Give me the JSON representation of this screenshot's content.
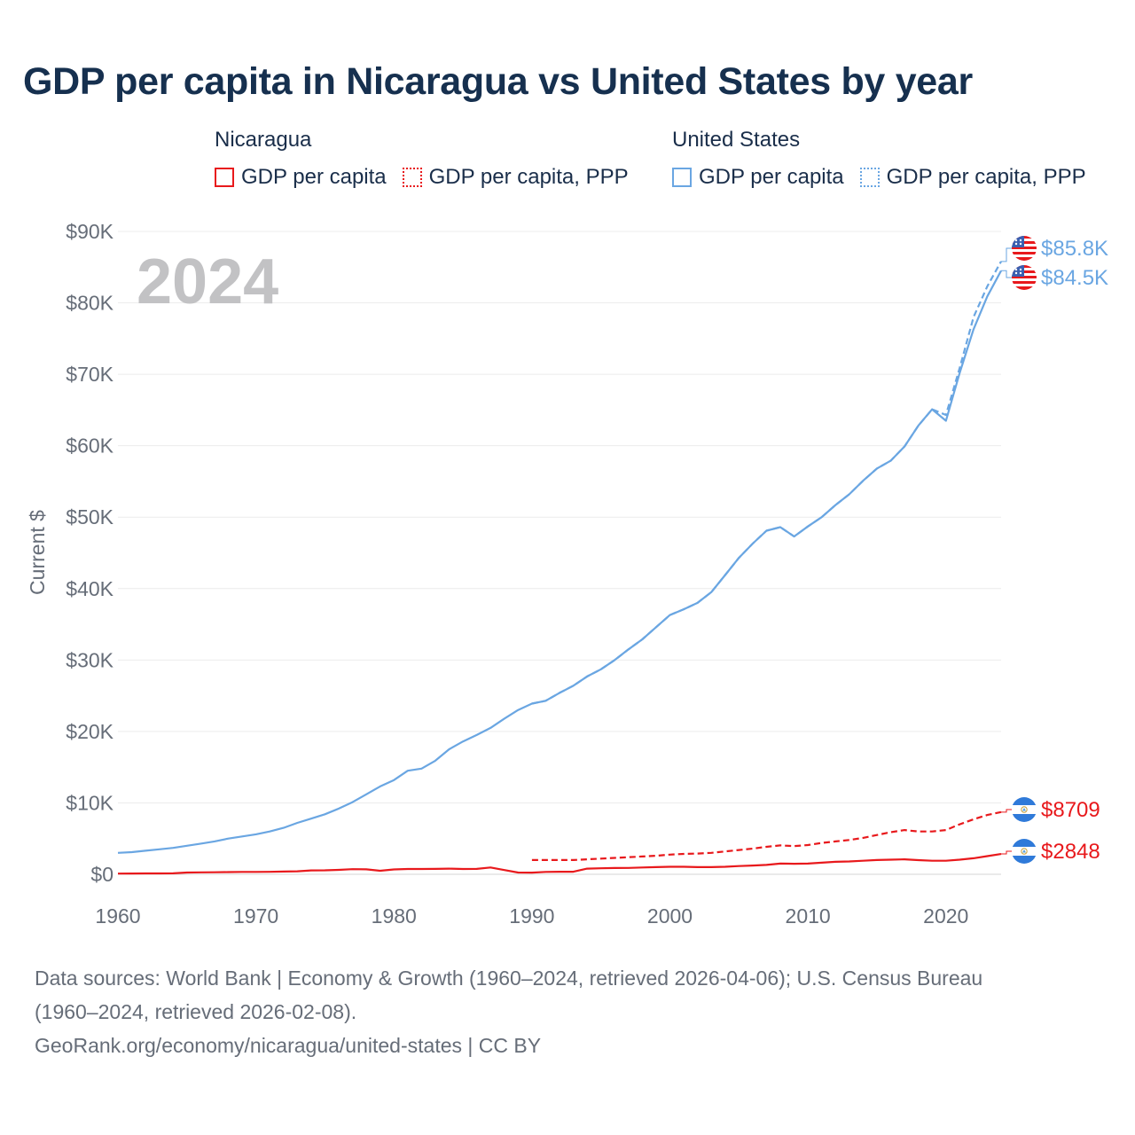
{
  "title": "GDP per capita in Nicaragua vs United States by year",
  "legend": {
    "groups": [
      {
        "name": "Nicaragua",
        "items": [
          {
            "label": "GDP per capita",
            "style": "solid",
            "color": "#e8191c"
          },
          {
            "label": "GDP per capita, PPP",
            "style": "dotted",
            "color": "#e8191c"
          }
        ]
      },
      {
        "name": "United States",
        "items": [
          {
            "label": "GDP per capita",
            "style": "solid",
            "color": "#6aa6e2"
          },
          {
            "label": "GDP per capita, PPP",
            "style": "dotted",
            "color": "#6aa6e2"
          }
        ]
      }
    ]
  },
  "year_watermark": "2024",
  "footer": {
    "line1": "Data sources: World Bank | Economy & Growth (1960–2024, retrieved 2026-04-06); U.S. Census Bureau",
    "line2": "(1960–2024, retrieved 2026-02-08).",
    "line3": "GeoRank.org/economy/nicaragua/united-states | CC BY"
  },
  "chart_data": {
    "type": "line",
    "ylabel": "Current $",
    "ylim": [
      0,
      90000
    ],
    "yticks": [
      0,
      10000,
      20000,
      30000,
      40000,
      50000,
      60000,
      70000,
      80000,
      90000
    ],
    "ytick_labels": [
      "$0",
      "$10K",
      "$20K",
      "$30K",
      "$40K",
      "$50K",
      "$60K",
      "$70K",
      "$80K",
      "$90K"
    ],
    "xlim": [
      1960,
      2024
    ],
    "xticks": [
      1960,
      1970,
      1980,
      1990,
      2000,
      2010,
      2020
    ],
    "xtick_labels": [
      "1960",
      "1970",
      "1980",
      "1990",
      "2000",
      "2010",
      "2020"
    ],
    "grid": true,
    "series": [
      {
        "name": "United States GDP per capita, PPP",
        "country": "United States",
        "color": "#6aa6e2",
        "dash": "dotted",
        "end_label": "$85.8K",
        "x": [
          1990,
          1991,
          1992,
          1993,
          1994,
          1995,
          1996,
          1997,
          1998,
          1999,
          2000,
          2001,
          2002,
          2003,
          2004,
          2005,
          2006,
          2007,
          2008,
          2009,
          2010,
          2011,
          2012,
          2013,
          2014,
          2015,
          2016,
          2017,
          2018,
          2019,
          2020,
          2021,
          2022,
          2023,
          2024
        ],
        "y": [
          23900,
          24300,
          25400,
          26400,
          27700,
          28700,
          30000,
          31500,
          32900,
          34600,
          36300,
          37100,
          38000,
          39500,
          41900,
          44300,
          46300,
          48100,
          48600,
          47300,
          48700,
          50000,
          51700,
          53200,
          55100,
          56800,
          57900,
          59900,
          62800,
          65100,
          64300,
          70900,
          78000,
          82300,
          85800
        ]
      },
      {
        "name": "United States GDP per capita",
        "country": "United States",
        "color": "#6aa6e2",
        "dash": "solid",
        "end_label": "$84.5K",
        "x": [
          1960,
          1961,
          1962,
          1963,
          1964,
          1965,
          1966,
          1967,
          1968,
          1969,
          1970,
          1971,
          1972,
          1973,
          1974,
          1975,
          1976,
          1977,
          1978,
          1979,
          1980,
          1981,
          1982,
          1983,
          1984,
          1985,
          1986,
          1987,
          1988,
          1989,
          1990,
          1991,
          1992,
          1993,
          1994,
          1995,
          1996,
          1997,
          1998,
          1999,
          2000,
          2001,
          2002,
          2003,
          2004,
          2005,
          2006,
          2007,
          2008,
          2009,
          2010,
          2011,
          2012,
          2013,
          2014,
          2015,
          2016,
          2017,
          2018,
          2019,
          2020,
          2021,
          2022,
          2023,
          2024
        ],
        "y": [
          3000,
          3100,
          3300,
          3500,
          3700,
          4000,
          4300,
          4600,
          5000,
          5300,
          5600,
          6000,
          6500,
          7200,
          7800,
          8400,
          9200,
          10100,
          11200,
          12300,
          13200,
          14500,
          14800,
          15900,
          17500,
          18600,
          19500,
          20500,
          21800,
          23000,
          23900,
          24300,
          25400,
          26400,
          27700,
          28700,
          30000,
          31500,
          32900,
          34600,
          36300,
          37100,
          38000,
          39500,
          41900,
          44300,
          46300,
          48100,
          48600,
          47300,
          48700,
          50000,
          51700,
          53200,
          55100,
          56800,
          57900,
          59900,
          62800,
          65100,
          63500,
          70200,
          76300,
          80900,
          84500
        ]
      },
      {
        "name": "Nicaragua GDP per capita, PPP",
        "country": "Nicaragua",
        "color": "#e8191c",
        "dash": "dotted",
        "end_label": "$8709",
        "x": [
          1990,
          1991,
          1992,
          1993,
          1994,
          1995,
          1996,
          1997,
          1998,
          1999,
          2000,
          2001,
          2002,
          2003,
          2004,
          2005,
          2006,
          2007,
          2008,
          2009,
          2010,
          2011,
          2012,
          2013,
          2014,
          2015,
          2016,
          2017,
          2018,
          2019,
          2020,
          2021,
          2022,
          2023,
          2024
        ],
        "y": [
          2000,
          2000,
          2000,
          2000,
          2100,
          2200,
          2300,
          2400,
          2500,
          2600,
          2750,
          2850,
          2900,
          3000,
          3200,
          3400,
          3600,
          3850,
          4050,
          3950,
          4100,
          4400,
          4600,
          4800,
          5100,
          5500,
          5900,
          6200,
          6000,
          6000,
          6200,
          7000,
          7700,
          8300,
          8709
        ]
      },
      {
        "name": "Nicaragua GDP per capita",
        "country": "Nicaragua",
        "color": "#e8191c",
        "dash": "solid",
        "end_label": "$2848",
        "x": [
          1960,
          1961,
          1962,
          1963,
          1964,
          1965,
          1966,
          1967,
          1968,
          1969,
          1970,
          1971,
          1972,
          1973,
          1974,
          1975,
          1976,
          1977,
          1978,
          1979,
          1980,
          1981,
          1982,
          1983,
          1984,
          1985,
          1986,
          1987,
          1988,
          1989,
          1990,
          1991,
          1992,
          1993,
          1994,
          1995,
          1996,
          1997,
          1998,
          1999,
          2000,
          2001,
          2002,
          2003,
          2004,
          2005,
          2006,
          2007,
          2008,
          2009,
          2010,
          2011,
          2012,
          2013,
          2014,
          2015,
          2016,
          2017,
          2018,
          2019,
          2020,
          2021,
          2022,
          2023,
          2024
        ],
        "y": [
          100,
          110,
          120,
          130,
          140,
          250,
          270,
          290,
          310,
          330,
          340,
          350,
          380,
          420,
          550,
          560,
          620,
          720,
          700,
          500,
          680,
          740,
          750,
          760,
          800,
          750,
          760,
          950,
          600,
          250,
          240,
          330,
          360,
          360,
          800,
          850,
          880,
          900,
          950,
          1000,
          1050,
          1060,
          1010,
          1000,
          1050,
          1150,
          1230,
          1320,
          1500,
          1480,
          1500,
          1630,
          1750,
          1800,
          1900,
          2000,
          2050,
          2100,
          1980,
          1900,
          1900,
          2050,
          2250,
          2550,
          2848
        ]
      }
    ]
  }
}
